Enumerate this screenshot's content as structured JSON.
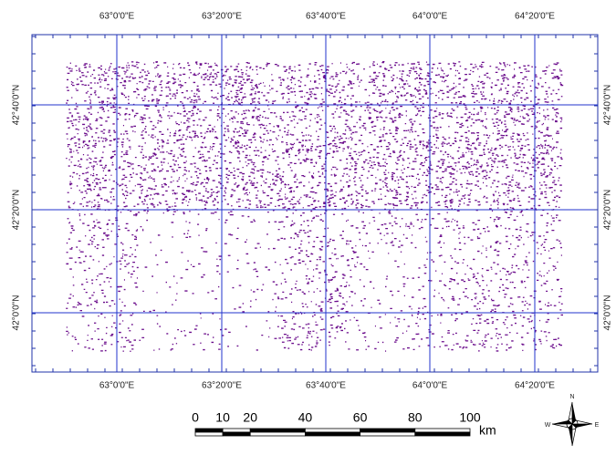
{
  "map": {
    "top_labels": [
      "63°0'0\"E",
      "63°20'0\"E",
      "63°40'0\"E",
      "64°0'0\"E",
      "64°20'0\"E"
    ],
    "bottom_labels": [
      "63°0'0\"E",
      "63°20'0\"E",
      "63°40'0\"E",
      "64°0'0\"E",
      "64°20'0\"E"
    ],
    "left_labels": [
      "42°40'0\"N",
      "42°20'0\"N",
      "42°0'0\"N"
    ],
    "right_labels": [
      "42°40'0\"N",
      "42°20'0\"N",
      "42°0'0\"N"
    ],
    "scale_bar": {
      "labels": [
        "0",
        "10",
        "20",
        "40",
        "60",
        "80",
        "100"
      ],
      "unit": "km"
    },
    "compass": {
      "north": "N",
      "west": "W",
      "east": "E"
    }
  }
}
